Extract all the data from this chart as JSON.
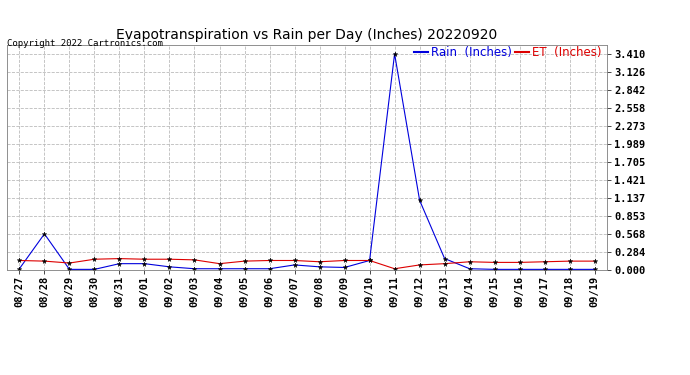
{
  "title": "Evapotranspiration vs Rain per Day (Inches) 20220920",
  "copyright_text": "Copyright 2022 Cartronics.com",
  "legend_rain": "Rain  (Inches)",
  "legend_et": "ET  (Inches)",
  "x_labels": [
    "08/27",
    "08/28",
    "08/29",
    "08/30",
    "08/31",
    "09/01",
    "09/02",
    "09/03",
    "09/04",
    "09/05",
    "09/06",
    "09/07",
    "09/08",
    "09/09",
    "09/10",
    "09/11",
    "09/12",
    "09/13",
    "09/14",
    "09/15",
    "09/16",
    "09/17",
    "09/18",
    "09/19"
  ],
  "rain_data": [
    0.02,
    0.57,
    0.01,
    0.01,
    0.1,
    0.1,
    0.05,
    0.02,
    0.02,
    0.02,
    0.02,
    0.08,
    0.05,
    0.04,
    0.15,
    3.41,
    1.1,
    0.18,
    0.02,
    0.01,
    0.01,
    0.01,
    0.01,
    0.01
  ],
  "et_data": [
    0.15,
    0.14,
    0.11,
    0.17,
    0.18,
    0.17,
    0.17,
    0.16,
    0.1,
    0.14,
    0.15,
    0.15,
    0.13,
    0.15,
    0.15,
    0.02,
    0.08,
    0.1,
    0.13,
    0.12,
    0.12,
    0.13,
    0.14,
    0.14
  ],
  "rain_color": "#0000dd",
  "et_color": "#dd0000",
  "yticks": [
    0.0,
    0.284,
    0.568,
    0.853,
    1.137,
    1.421,
    1.705,
    1.989,
    2.273,
    2.558,
    2.842,
    3.126,
    3.41
  ],
  "ylim": [
    0.0,
    3.55
  ],
  "bg_color": "#ffffff",
  "plot_bg_color": "#ffffff",
  "grid_color": "#bbbbbb",
  "title_fontsize": 10,
  "tick_fontsize": 7.5,
  "legend_fontsize": 8.5,
  "copyright_fontsize": 6.5
}
